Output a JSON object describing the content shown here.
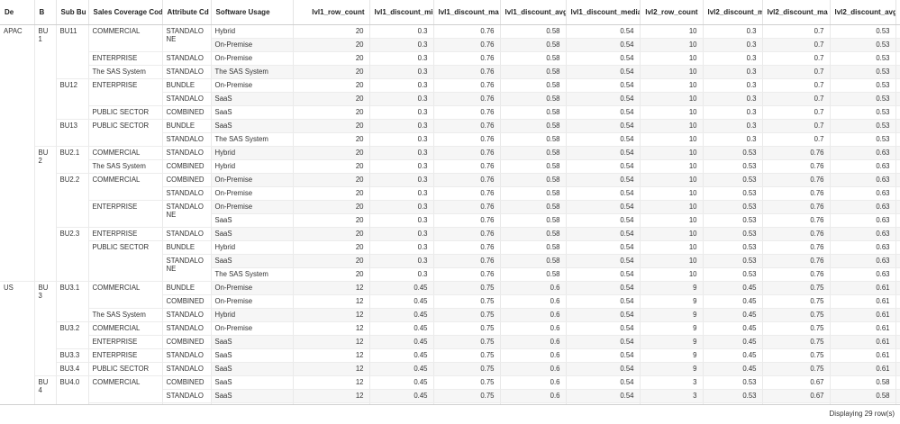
{
  "columns": [
    "De",
    "B",
    "Sub Bu",
    "Sales Coverage Code",
    "Attribute Cd",
    "Software Usage",
    "lvl1_row_count",
    "lvl1_discount_min",
    "lvl1_discount_ma",
    "lvl1_discount_avg",
    "lvl1_discount_media",
    "lvl2_row_count",
    "lvl2_discount_min",
    "lvl2_discount_ma",
    "lvl2_discount_avg",
    "lvl2_disco"
  ],
  "rows": [
    {
      "de": "APAC",
      "b": "BU1",
      "sub": "BU11",
      "sales": "COMMERCIAL",
      "attr": "STANDALONE",
      "sw": "Hybrid",
      "v": [
        "20",
        "0.3",
        "0.76",
        "0.58",
        "0.54",
        "10",
        "0.3",
        "0.7",
        "0.53"
      ]
    },
    {
      "sw": "On-Premise",
      "v": [
        "20",
        "0.3",
        "0.76",
        "0.58",
        "0.54",
        "10",
        "0.3",
        "0.7",
        "0.53"
      ]
    },
    {
      "sales": "ENTERPRISE",
      "attr": "STANDALO",
      "sw": "On-Premise",
      "v": [
        "20",
        "0.3",
        "0.76",
        "0.58",
        "0.54",
        "10",
        "0.3",
        "0.7",
        "0.53"
      ]
    },
    {
      "sales": "The SAS System",
      "attr": "STANDALO",
      "sw": "The SAS System",
      "v": [
        "20",
        "0.3",
        "0.76",
        "0.58",
        "0.54",
        "10",
        "0.3",
        "0.7",
        "0.53"
      ]
    },
    {
      "sub": "BU12",
      "sales": "ENTERPRISE",
      "attr": "BUNDLE",
      "sw": "On-Premise",
      "v": [
        "20",
        "0.3",
        "0.76",
        "0.58",
        "0.54",
        "10",
        "0.3",
        "0.7",
        "0.53"
      ]
    },
    {
      "attr": "STANDALO",
      "sw": "SaaS",
      "v": [
        "20",
        "0.3",
        "0.76",
        "0.58",
        "0.54",
        "10",
        "0.3",
        "0.7",
        "0.53"
      ]
    },
    {
      "sales": "PUBLIC SECTOR",
      "attr": "COMBINED",
      "sw": "SaaS",
      "v": [
        "20",
        "0.3",
        "0.76",
        "0.58",
        "0.54",
        "10",
        "0.3",
        "0.7",
        "0.53"
      ]
    },
    {
      "sub": "BU13",
      "sales": "PUBLIC SECTOR",
      "attr": "BUNDLE",
      "sw": "SaaS",
      "v": [
        "20",
        "0.3",
        "0.76",
        "0.58",
        "0.54",
        "10",
        "0.3",
        "0.7",
        "0.53"
      ]
    },
    {
      "attr": "STANDALO",
      "sw": "The SAS System",
      "v": [
        "20",
        "0.3",
        "0.76",
        "0.58",
        "0.54",
        "10",
        "0.3",
        "0.7",
        "0.53"
      ]
    },
    {
      "b": "BU2",
      "sub": "BU2.1",
      "sales": "COMMERCIAL",
      "attr": "STANDALO",
      "sw": "Hybrid",
      "v": [
        "20",
        "0.3",
        "0.76",
        "0.58",
        "0.54",
        "10",
        "0.53",
        "0.76",
        "0.63"
      ]
    },
    {
      "sales": "The SAS System",
      "attr": "COMBINED",
      "sw": "Hybrid",
      "v": [
        "20",
        "0.3",
        "0.76",
        "0.58",
        "0.54",
        "10",
        "0.53",
        "0.76",
        "0.63"
      ]
    },
    {
      "sub": "BU2.2",
      "sales": "COMMERCIAL",
      "attr": "COMBINED",
      "sw": "On-Premise",
      "v": [
        "20",
        "0.3",
        "0.76",
        "0.58",
        "0.54",
        "10",
        "0.53",
        "0.76",
        "0.63"
      ]
    },
    {
      "attr": "STANDALO",
      "sw": "On-Premise",
      "v": [
        "20",
        "0.3",
        "0.76",
        "0.58",
        "0.54",
        "10",
        "0.53",
        "0.76",
        "0.63"
      ]
    },
    {
      "sales": "ENTERPRISE",
      "attr": "STANDALONE",
      "sw": "On-Premise",
      "v": [
        "20",
        "0.3",
        "0.76",
        "0.58",
        "0.54",
        "10",
        "0.53",
        "0.76",
        "0.63"
      ]
    },
    {
      "sw": "SaaS",
      "v": [
        "20",
        "0.3",
        "0.76",
        "0.58",
        "0.54",
        "10",
        "0.53",
        "0.76",
        "0.63"
      ]
    },
    {
      "sub": "BU2.3",
      "sales": "ENTERPRISE",
      "attr": "STANDALO",
      "sw": "SaaS",
      "v": [
        "20",
        "0.3",
        "0.76",
        "0.58",
        "0.54",
        "10",
        "0.53",
        "0.76",
        "0.63"
      ]
    },
    {
      "sales": "PUBLIC SECTOR",
      "attr": "BUNDLE",
      "sw": "Hybrid",
      "v": [
        "20",
        "0.3",
        "0.76",
        "0.58",
        "0.54",
        "10",
        "0.53",
        "0.76",
        "0.63"
      ]
    },
    {
      "attr": "STANDALONE",
      "sw": "SaaS",
      "v": [
        "20",
        "0.3",
        "0.76",
        "0.58",
        "0.54",
        "10",
        "0.53",
        "0.76",
        "0.63"
      ]
    },
    {
      "sw": "The SAS System",
      "v": [
        "20",
        "0.3",
        "0.76",
        "0.58",
        "0.54",
        "10",
        "0.53",
        "0.76",
        "0.63"
      ]
    },
    {
      "de": "US",
      "b": "BU3",
      "sub": "BU3.1",
      "sales": "COMMERCIAL",
      "attr": "BUNDLE",
      "sw": "On-Premise",
      "v": [
        "12",
        "0.45",
        "0.75",
        "0.6",
        "0.54",
        "9",
        "0.45",
        "0.75",
        "0.61"
      ]
    },
    {
      "attr": "COMBINED",
      "sw": "On-Premise",
      "v": [
        "12",
        "0.45",
        "0.75",
        "0.6",
        "0.54",
        "9",
        "0.45",
        "0.75",
        "0.61"
      ]
    },
    {
      "sales": "The SAS System",
      "attr": "STANDALO",
      "sw": "Hybrid",
      "v": [
        "12",
        "0.45",
        "0.75",
        "0.6",
        "0.54",
        "9",
        "0.45",
        "0.75",
        "0.61"
      ]
    },
    {
      "sub": "BU3.2",
      "sales": "COMMERCIAL",
      "attr": "STANDALO",
      "sw": "On-Premise",
      "v": [
        "12",
        "0.45",
        "0.75",
        "0.6",
        "0.54",
        "9",
        "0.45",
        "0.75",
        "0.61"
      ]
    },
    {
      "sales": "ENTERPRISE",
      "attr": "COMBINED",
      "sw": "SaaS",
      "v": [
        "12",
        "0.45",
        "0.75",
        "0.6",
        "0.54",
        "9",
        "0.45",
        "0.75",
        "0.61"
      ]
    },
    {
      "sub": "BU3.3",
      "sales": "ENTERPRISE",
      "attr": "STANDALO",
      "sw": "SaaS",
      "v": [
        "12",
        "0.45",
        "0.75",
        "0.6",
        "0.54",
        "9",
        "0.45",
        "0.75",
        "0.61"
      ]
    },
    {
      "sub": "BU3.4",
      "sales": "PUBLIC SECTOR",
      "attr": "STANDALO",
      "sw": "SaaS",
      "v": [
        "12",
        "0.45",
        "0.75",
        "0.6",
        "0.54",
        "9",
        "0.45",
        "0.75",
        "0.61"
      ]
    },
    {
      "b": "BU4",
      "sub": "BU4.0",
      "sales": "COMMERCIAL",
      "attr": "COMBINED",
      "sw": "SaaS",
      "v": [
        "12",
        "0.45",
        "0.75",
        "0.6",
        "0.54",
        "3",
        "0.53",
        "0.67",
        "0.58"
      ]
    },
    {
      "attr": "STANDALO",
      "sw": "SaaS",
      "v": [
        "12",
        "0.45",
        "0.75",
        "0.6",
        "0.54",
        "3",
        "0.53",
        "0.67",
        "0.58"
      ]
    },
    {
      "sales": "PUBLIC SECTOR",
      "attr": "STANDALO",
      "sw": "SaaS",
      "v": [
        "12",
        "0.45",
        "0.75",
        "0.6",
        "0.54",
        "3",
        "0.53",
        "0.67",
        "0.58"
      ]
    }
  ],
  "footer": {
    "status": "Displaying 29 row(s)"
  }
}
